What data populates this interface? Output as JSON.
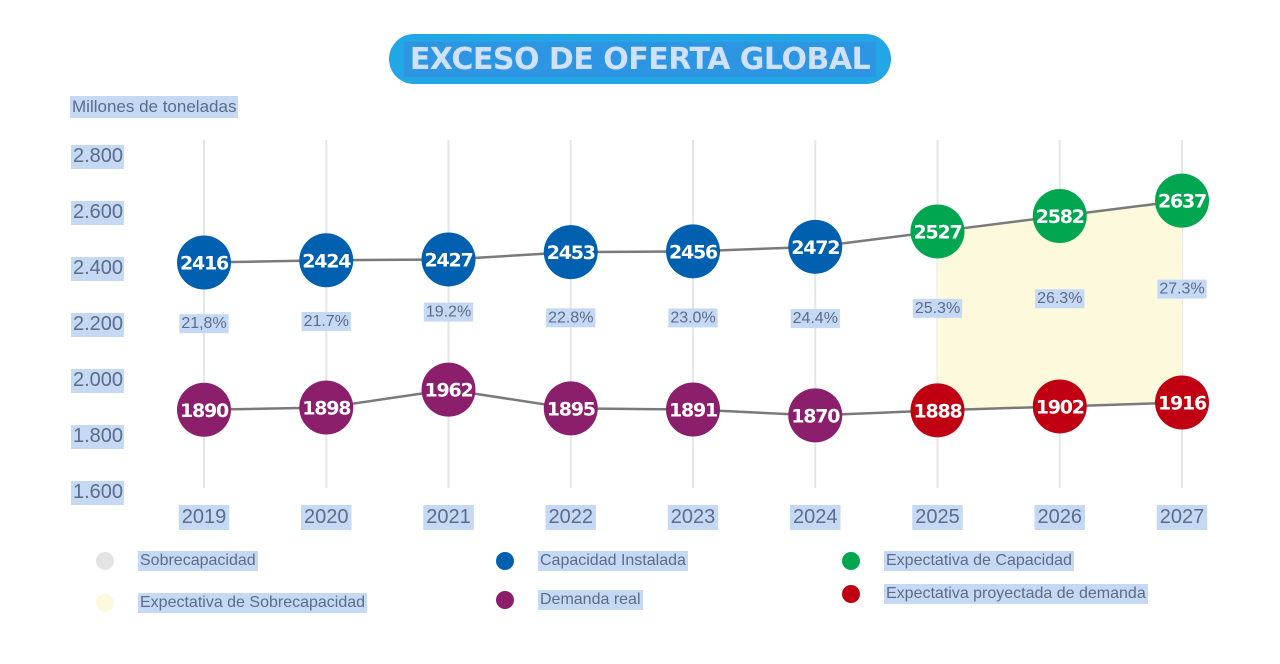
{
  "title": "EXCESO DE OFERTA GLOBAL",
  "colors": {
    "title_pill": "#22a6e6",
    "capacity": "#0060b0",
    "demand": "#8b1f6b",
    "capacity_forecast": "#00a650",
    "demand_forecast": "#c00012",
    "overcapacity": "#e4e4e4",
    "overcapacity_forecast": "#fdf9dc",
    "line": "#7a7a7a",
    "text": "#5c6c8a",
    "highlight": "#c5d9f5"
  },
  "chart_data": {
    "type": "line",
    "title": "EXCESO DE OFERTA GLOBAL",
    "ylabel": "Millones de toneladas",
    "xlabel": "",
    "ylim": [
      1600,
      2800
    ],
    "yticks": [
      2800,
      2600,
      2400,
      2200,
      2000,
      1800,
      1600
    ],
    "ytick_labels": [
      "2.800",
      "2.600",
      "2.400",
      "2.200",
      "2.000",
      "1.800",
      "1.600"
    ],
    "grid": "vertical",
    "categories": [
      "2019",
      "2020",
      "2021",
      "2022",
      "2023",
      "2024",
      "2025",
      "2026",
      "2027"
    ],
    "series": [
      {
        "name": "Capacidad Instalada",
        "values": [
          2416,
          2424,
          2427,
          2453,
          2456,
          2472,
          null,
          null,
          null
        ]
      },
      {
        "name": "Expectativa de Capacidad",
        "values": [
          null,
          null,
          null,
          null,
          null,
          null,
          2527,
          2582,
          2637
        ]
      },
      {
        "name": "Demanda real",
        "values": [
          1890,
          1898,
          1962,
          1895,
          1891,
          1870,
          null,
          null,
          null
        ]
      },
      {
        "name": "Expectativa proyectada de demanda",
        "values": [
          null,
          null,
          null,
          null,
          null,
          null,
          1888,
          1902,
          1916
        ]
      }
    ],
    "capacity_all": [
      2416,
      2424,
      2427,
      2453,
      2456,
      2472,
      2527,
      2582,
      2637
    ],
    "demand_all": [
      1890,
      1898,
      1962,
      1895,
      1891,
      1870,
      1888,
      1902,
      1916
    ],
    "overcapacity_labels": [
      "21,8%",
      "21.7%",
      "19.2%",
      "22.8%",
      "23.0%",
      "24.4%",
      "25.3%",
      "26.3%",
      "27.3%"
    ],
    "forecast_start_index": 6,
    "shaded_region": "Expectativa de Sobrecapacidad (2025–2027)",
    "legend": [
      {
        "label": "Sobrecapacidad",
        "color": "#e4e4e4"
      },
      {
        "label": "Expectativa de Sobrecapacidad",
        "color": "#fdf9dc"
      },
      {
        "label": "Capacidad Instalada",
        "color": "#0060b0"
      },
      {
        "label": "Demanda real",
        "color": "#8b1f6b"
      },
      {
        "label": "Expectativa de Capacidad",
        "color": "#00a650"
      },
      {
        "label": "Expectativa proyectada de demanda",
        "color": "#c00012"
      }
    ],
    "legend_position": "bottom"
  }
}
